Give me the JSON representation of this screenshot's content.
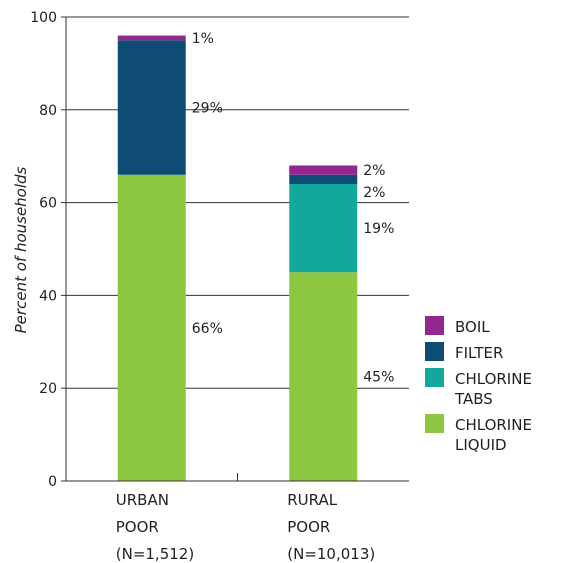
{
  "chart_data": {
    "type": "bar",
    "stacked": true,
    "ylabel": "Percent of households",
    "ylim": [
      0,
      100
    ],
    "yticks": [
      0,
      20,
      40,
      60,
      80,
      100
    ],
    "grid": true,
    "legend_position": "right",
    "categories": [
      {
        "lines": [
          "URBAN",
          "POOR",
          "(N=1,512)"
        ]
      },
      {
        "lines": [
          "RURAL",
          "POOR",
          "(N=10,013)"
        ]
      }
    ],
    "series": [
      {
        "name": "CHLORINE LIQUID",
        "legend_lines": [
          "CHLORINE",
          "LIQUID"
        ],
        "color": "#8dc63f",
        "values": [
          66,
          45
        ],
        "labels": [
          "66%",
          "45%"
        ]
      },
      {
        "name": "CHLORINE TABS",
        "legend_lines": [
          "CHLORINE",
          "TABS"
        ],
        "color": "#13a89e",
        "values": [
          0,
          19
        ],
        "labels": [
          "",
          "19%"
        ]
      },
      {
        "name": "FILTER",
        "legend_lines": [
          "FILTER"
        ],
        "color": "#0f4c75",
        "values": [
          29,
          2
        ],
        "labels": [
          "29%",
          "2%"
        ]
      },
      {
        "name": "BOIL",
        "legend_lines": [
          "BOIL"
        ],
        "color": "#92278f",
        "values": [
          1,
          2
        ],
        "labels": [
          "1%",
          "2%"
        ]
      }
    ]
  }
}
